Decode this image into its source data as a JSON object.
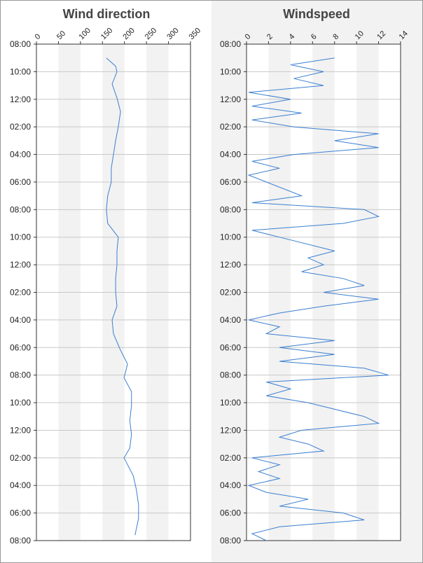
{
  "chart_data": [
    {
      "type": "line",
      "title": "Wind direction",
      "color": "#3a7fd0",
      "grid": true,
      "x": [
        1,
        1.6,
        2,
        2.9,
        3.9,
        4.9,
        6,
        7,
        8,
        9,
        10,
        11,
        12,
        13,
        14,
        15,
        16,
        17,
        18,
        19,
        20,
        21,
        22.2,
        23.2,
        24.2,
        25.2,
        26.2,
        27.3,
        28.3,
        29.3,
        30,
        31.3,
        32.3,
        33.4,
        34.4,
        35.6
      ],
      "values": [
        159,
        180,
        183,
        172,
        183,
        191,
        186,
        180,
        175,
        170,
        170,
        162,
        159,
        162,
        186,
        183,
        183,
        180,
        180,
        183,
        172,
        175,
        191,
        207,
        199,
        216,
        216,
        212,
        216,
        212,
        199,
        220,
        227,
        232,
        232,
        224
      ],
      "xlim": [
        0,
        36
      ],
      "xticks": [
        {
          "value": 0,
          "label": "08:00"
        },
        {
          "value": 2,
          "label": "10:00"
        },
        {
          "value": 4,
          "label": "12:00"
        },
        {
          "value": 6,
          "label": "02:00"
        },
        {
          "value": 8,
          "label": "04:00"
        },
        {
          "value": 10,
          "label": "06:00"
        },
        {
          "value": 12,
          "label": "08:00"
        },
        {
          "value": 14,
          "label": "10:00"
        },
        {
          "value": 16,
          "label": "12:00"
        },
        {
          "value": 18,
          "label": "02:00"
        },
        {
          "value": 20,
          "label": "04:00"
        },
        {
          "value": 22,
          "label": "06:00"
        },
        {
          "value": 24,
          "label": "08:00"
        },
        {
          "value": 26,
          "label": "10:00"
        },
        {
          "value": 28,
          "label": "12:00"
        },
        {
          "value": 30,
          "label": "02:00"
        },
        {
          "value": 32,
          "label": "04:00"
        },
        {
          "value": 34,
          "label": "06:00"
        },
        {
          "value": 36,
          "label": "08:00"
        }
      ],
      "ylim": [
        0,
        350
      ],
      "yticks": [
        0,
        50,
        100,
        150,
        200,
        250,
        300,
        350
      ]
    },
    {
      "type": "line",
      "title": "Windspeed",
      "color": "#3a7fd0",
      "grid": true,
      "x": [
        1,
        1.5,
        2,
        2.5,
        3,
        3.5,
        4,
        4.5,
        5,
        5.5,
        6,
        6.5,
        7,
        7.5,
        8,
        8.5,
        9,
        9.5,
        10,
        11,
        11.5,
        12,
        12.5,
        13,
        13.5,
        14,
        15,
        15.5,
        16,
        16.5,
        17,
        17.5,
        18,
        18.5,
        19,
        19.5,
        20,
        20.5,
        21,
        21.5,
        22,
        22.5,
        23,
        23.5,
        24,
        24.5,
        25,
        25.5,
        26,
        27,
        27.5,
        28,
        28.5,
        29,
        29.5,
        30,
        30.5,
        31,
        31.5,
        32,
        32.5,
        33,
        33.5,
        34,
        34.5,
        35,
        35.5,
        36
      ],
      "values": [
        8,
        4,
        7,
        4.3,
        7,
        0.2,
        4,
        0.5,
        5,
        0.5,
        4.3,
        12,
        8,
        12,
        4.3,
        0.5,
        3,
        0.2,
        1.8,
        5,
        0.5,
        10.7,
        12,
        8.8,
        0.5,
        3,
        8,
        5.6,
        7,
        5,
        8.8,
        10.7,
        7,
        12,
        7,
        3,
        0.2,
        3,
        1.8,
        8,
        3,
        8,
        3,
        10.7,
        12.9,
        1.8,
        4,
        1.8,
        5.6,
        10.7,
        12,
        5,
        3,
        5.6,
        7,
        0.5,
        3,
        1.1,
        3,
        0.2,
        1.8,
        5.6,
        3,
        8.8,
        10.7,
        3,
        0.5,
        1.8
      ],
      "xlim": [
        0,
        36
      ],
      "xticks": [
        {
          "value": 0,
          "label": "08:00"
        },
        {
          "value": 2,
          "label": "10:00"
        },
        {
          "value": 4,
          "label": "12:00"
        },
        {
          "value": 6,
          "label": "02:00"
        },
        {
          "value": 8,
          "label": "04:00"
        },
        {
          "value": 10,
          "label": "06:00"
        },
        {
          "value": 12,
          "label": "08:00"
        },
        {
          "value": 14,
          "label": "10:00"
        },
        {
          "value": 16,
          "label": "12:00"
        },
        {
          "value": 18,
          "label": "02:00"
        },
        {
          "value": 20,
          "label": "04:00"
        },
        {
          "value": 22,
          "label": "06:00"
        },
        {
          "value": 24,
          "label": "08:00"
        },
        {
          "value": 26,
          "label": "10:00"
        },
        {
          "value": 28,
          "label": "12:00"
        },
        {
          "value": 30,
          "label": "02:00"
        },
        {
          "value": 32,
          "label": "04:00"
        },
        {
          "value": 34,
          "label": "06:00"
        },
        {
          "value": 36,
          "label": "08:00"
        }
      ],
      "ylim": [
        0,
        14
      ],
      "yticks": [
        0,
        2,
        4,
        6,
        8,
        10,
        12,
        14
      ]
    }
  ]
}
